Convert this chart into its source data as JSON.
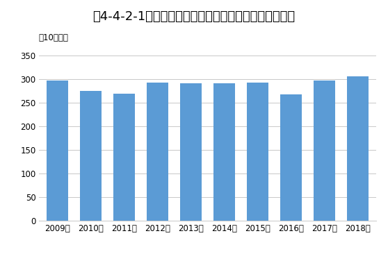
{
  "title": "図4-4-2-1　画像診断システムの生産金額推移（国内）",
  "title_plain": "図4-4-2-1　画像診断システムの生産金額推移（国内）",
  "ylabel": "（10億円）",
  "categories": [
    "2009年",
    "2010年",
    "2011年",
    "2012年",
    "2013年",
    "2014年",
    "2015年",
    "2016年",
    "2017年",
    "2018年"
  ],
  "values": [
    297,
    275,
    268,
    292,
    290,
    290,
    292,
    267,
    296,
    306
  ],
  "bar_color": "#5b9bd5",
  "ylim": [
    0,
    370
  ],
  "yticks": [
    0,
    50,
    100,
    150,
    200,
    250,
    300,
    350
  ],
  "grid_color": "#c8c8c8",
  "background_color": "#ffffff",
  "title_fontsize": 13,
  "tick_fontsize": 8.5,
  "ylabel_fontsize": 8.5
}
